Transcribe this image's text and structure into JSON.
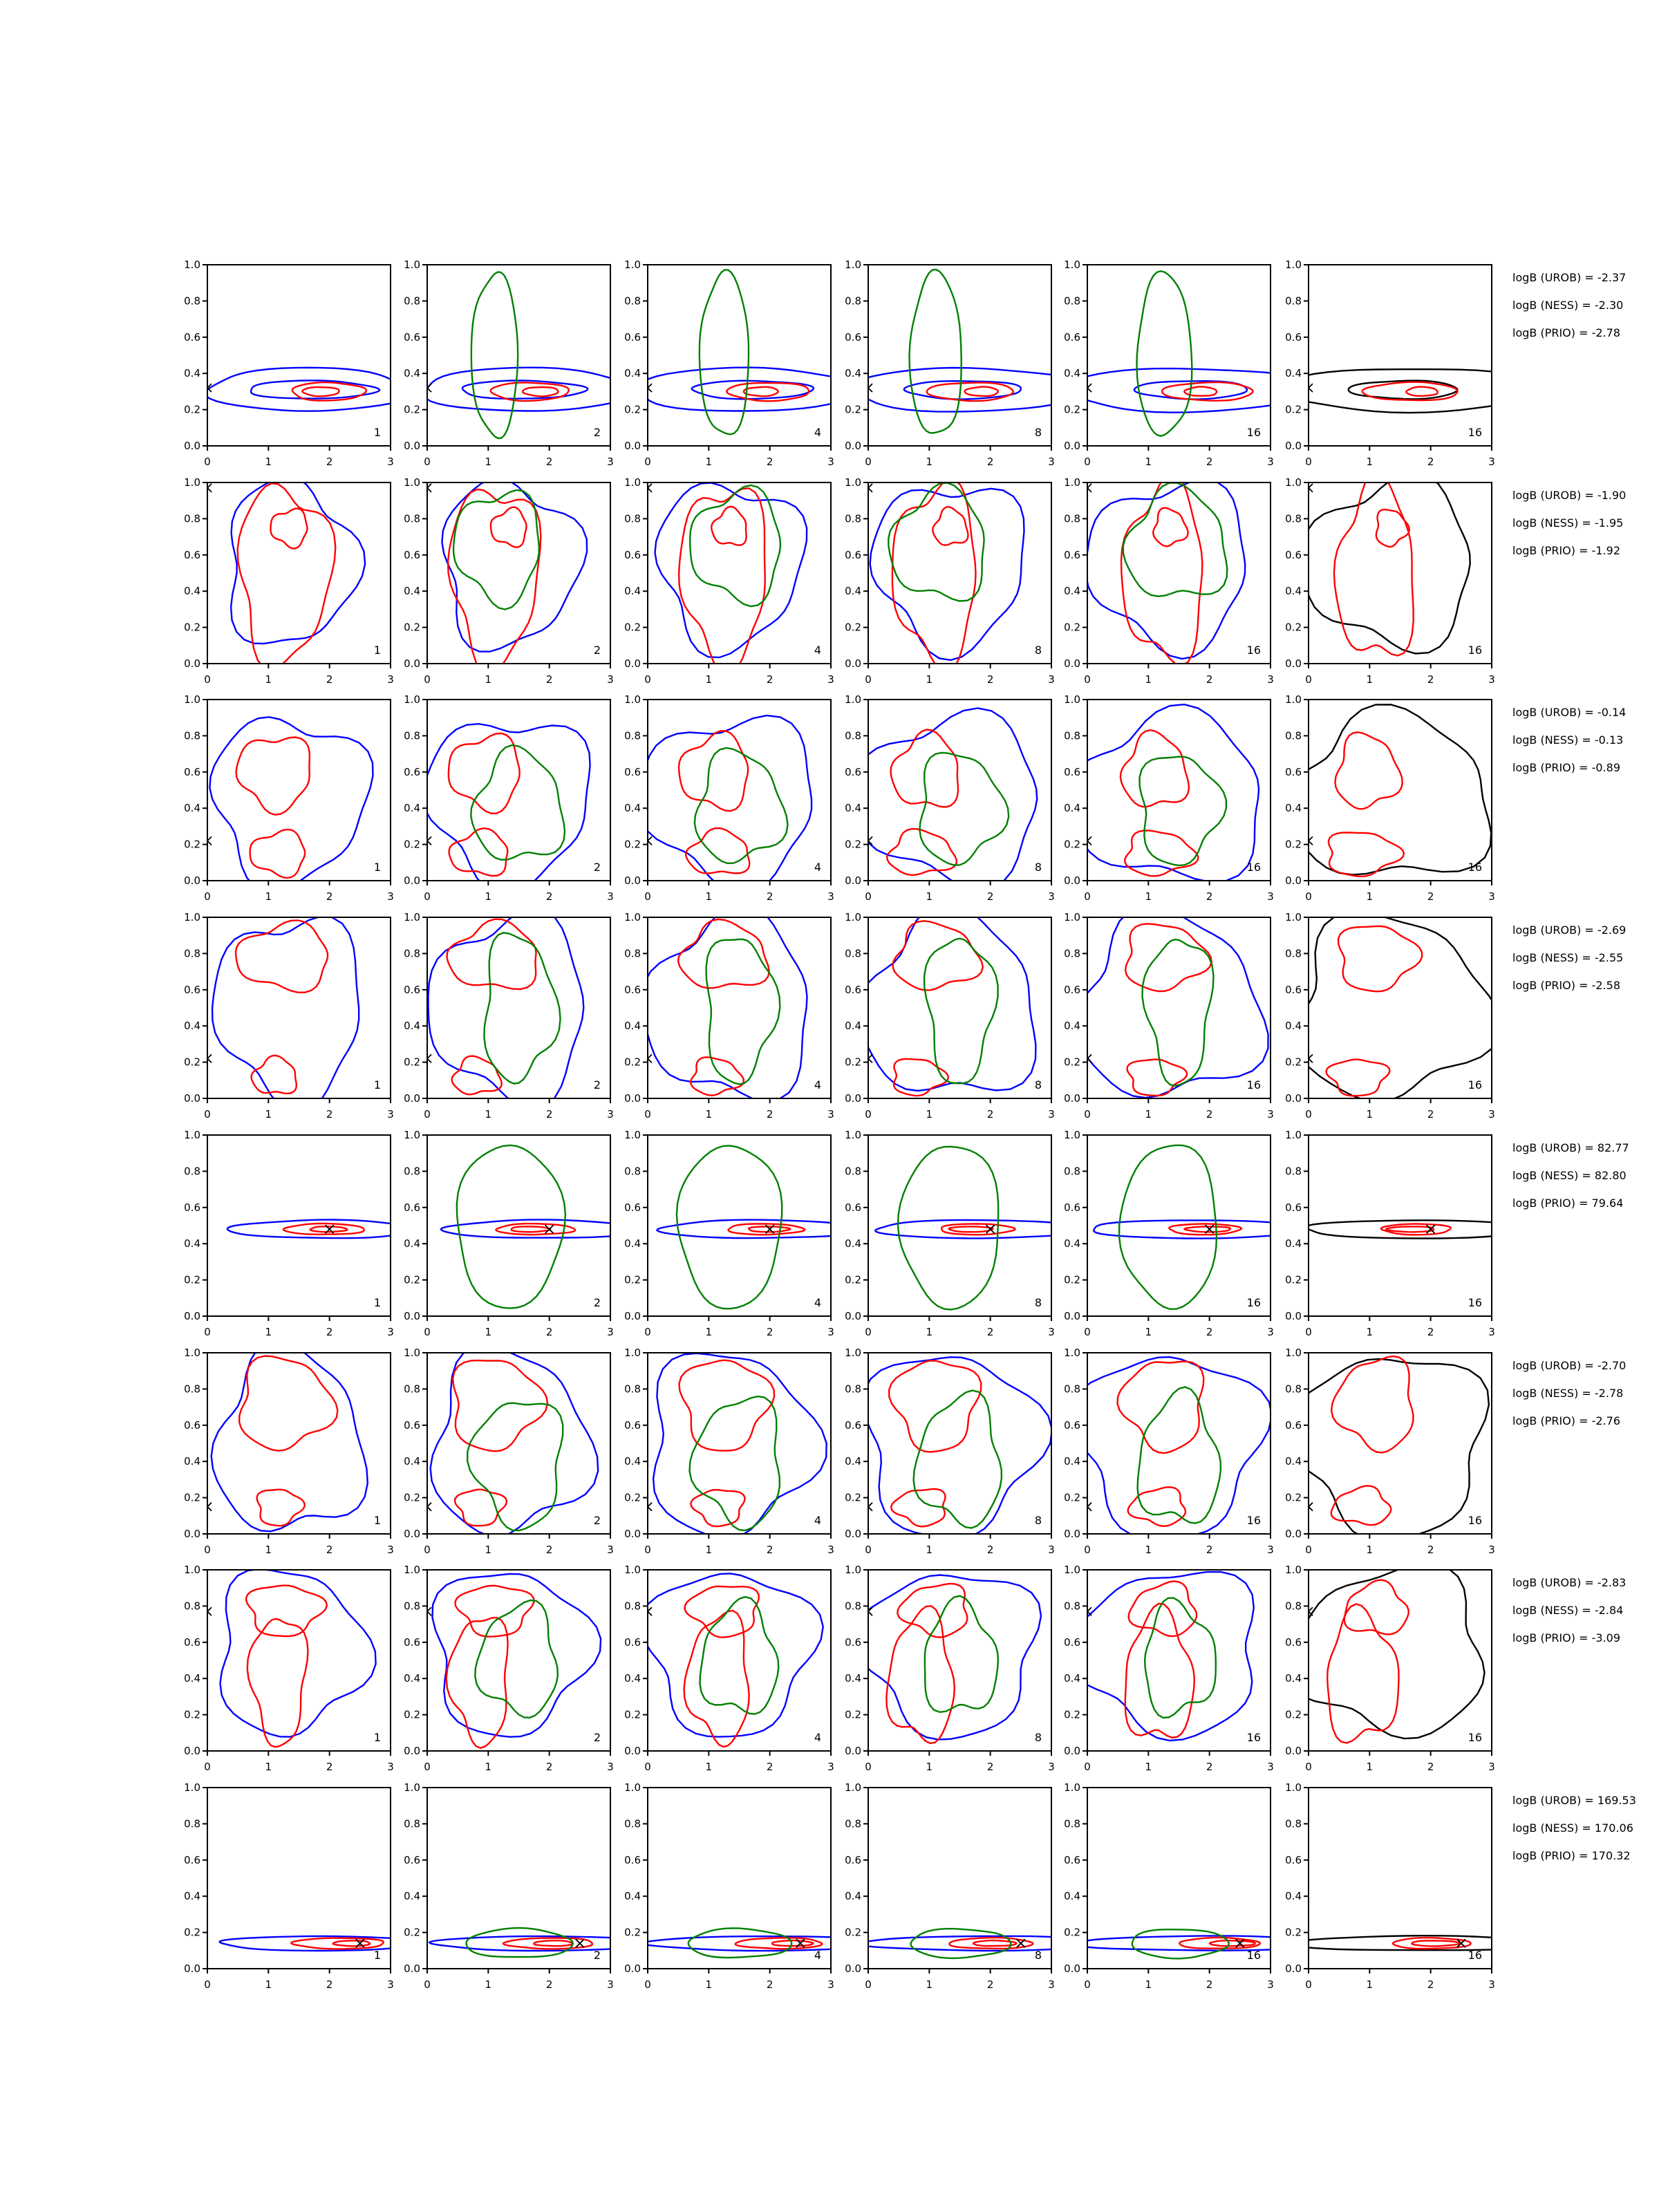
{
  "figure": {
    "rows": 8,
    "cols": 6,
    "xlim": [
      0,
      3
    ],
    "ylim": [
      0,
      1
    ],
    "xticks": [
      "0",
      "1",
      "2",
      "3"
    ],
    "yticks": [
      "0.0",
      "0.2",
      "0.4",
      "0.6",
      "0.8",
      "1.0"
    ],
    "column_labels": [
      "1",
      "2",
      "4",
      "8",
      "16",
      "16"
    ],
    "colors": {
      "blue": "#0000ff",
      "red": "#ff0000",
      "green": "#008000",
      "black": "#000000",
      "axis": "#000000"
    }
  },
  "chart_data": {
    "type": "contour-grid",
    "grid": "8 rows x 6 columns",
    "xlim": [
      0,
      3
    ],
    "ylim": [
      0,
      1
    ],
    "rows": [
      {
        "truth": [
          0.0,
          0.32
        ],
        "logB": [
          "logB (UROB) = -2.37",
          "logB (NESS) = -2.30",
          "logB (PRIO) = -2.78"
        ]
      },
      {
        "truth": [
          0.0,
          0.97
        ],
        "logB": [
          "logB (UROB) = -1.90",
          "logB (NESS) = -1.95",
          "logB (PRIO) = -1.92"
        ]
      },
      {
        "truth": [
          0.0,
          0.22
        ],
        "logB": [
          "logB (UROB) = -0.14",
          "logB (NESS) = -0.13",
          "logB (PRIO) = -0.89"
        ]
      },
      {
        "truth": [
          0.0,
          0.22
        ],
        "logB": [
          "logB (UROB) = -2.69",
          "logB (NESS) = -2.55",
          "logB (PRIO) = -2.58"
        ]
      },
      {
        "truth": [
          2.0,
          0.48
        ],
        "logB": [
          "logB (UROB) = 82.77",
          "logB (NESS) = 82.80",
          "logB (PRIO) = 79.64"
        ]
      },
      {
        "truth": [
          0.0,
          0.15
        ],
        "logB": [
          "logB (UROB) = -2.70",
          "logB (NESS) = -2.78",
          "logB (PRIO) = -2.76"
        ]
      },
      {
        "truth": [
          0.0,
          0.77
        ],
        "logB": [
          "logB (UROB) = -2.83",
          "logB (NESS) = -2.84",
          "logB (PRIO) = -3.09"
        ]
      },
      {
        "truth": [
          2.5,
          0.14
        ],
        "logB": [
          "logB (UROB) = 169.53",
          "logB (NESS) = 170.06",
          "logB (PRIO) = 170.32"
        ]
      }
    ]
  }
}
